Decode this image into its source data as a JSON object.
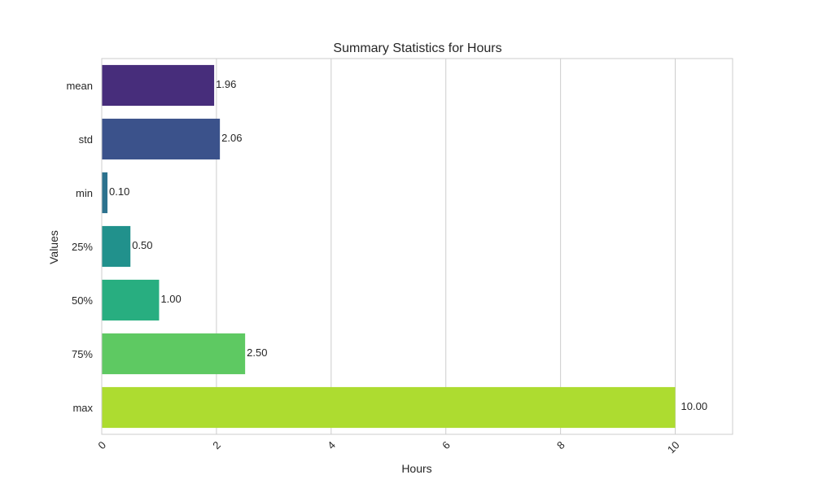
{
  "chart_data": {
    "type": "bar",
    "orientation": "horizontal",
    "title": "Summary Statistics for Hours",
    "xlabel": "Hours",
    "ylabel": "Values",
    "xlim": [
      0,
      11
    ],
    "xticks": [
      0,
      2,
      4,
      6,
      8,
      10
    ],
    "categories": [
      "mean",
      "std",
      "min",
      "25%",
      "50%",
      "75%",
      "max"
    ],
    "values": [
      1.96,
      2.06,
      0.1,
      0.5,
      1.0,
      2.5,
      10.0
    ],
    "value_labels": [
      "1.96",
      "2.06",
      "0.10",
      "0.50",
      "1.00",
      "2.50",
      "10.00"
    ],
    "colors": [
      "#472d7b",
      "#3b528b",
      "#2c728e",
      "#21918c",
      "#28ae80",
      "#5ec962",
      "#addc30"
    ],
    "grid": "vertical",
    "xtick_rotation": -45,
    "legend": "none"
  }
}
